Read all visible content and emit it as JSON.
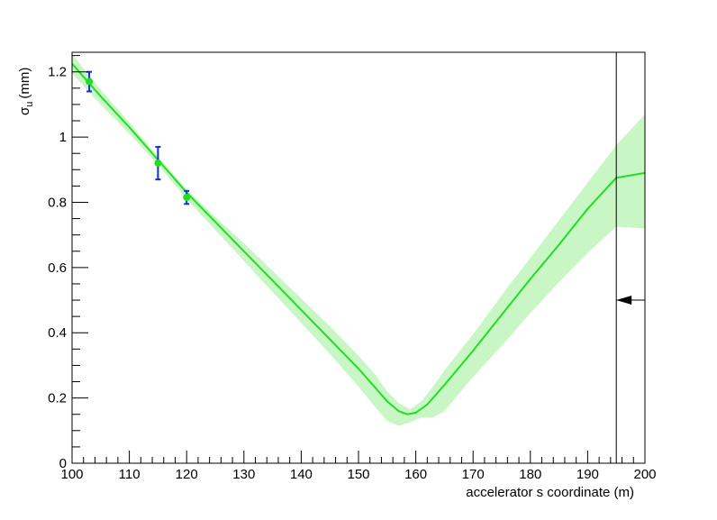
{
  "chart_data": {
    "type": "line",
    "title": "",
    "xlabel": "accelerator s coordinate (m)",
    "ylabel_main": "σ",
    "ylabel_sub": "u",
    "ylabel_unit": "(mm)",
    "xlim": [
      100,
      200
    ],
    "ylim": [
      0,
      1.26
    ],
    "grid": false,
    "x_ticks": [
      100,
      110,
      120,
      130,
      140,
      150,
      160,
      170,
      180,
      190,
      200
    ],
    "y_ticks": [
      0,
      0.2,
      0.4,
      0.6,
      0.8,
      1,
      1.2
    ],
    "y_tick_labels": [
      "0",
      "0.2",
      "0.4",
      "0.6",
      "0.8",
      "1",
      "1.2"
    ],
    "measurements": [
      {
        "x": 103,
        "y": 1.17,
        "err": 0.03
      },
      {
        "x": 115,
        "y": 0.92,
        "err": 0.05
      },
      {
        "x": 120,
        "y": 0.815,
        "err": 0.02
      }
    ],
    "fit_curve": {
      "x": [
        100,
        105,
        110,
        115,
        120,
        125,
        130,
        135,
        140,
        145,
        150,
        153,
        155,
        157,
        158.5,
        160,
        162,
        165,
        170,
        175,
        180,
        185,
        190,
        195,
        200
      ],
      "y": [
        1.225,
        1.125,
        1.03,
        0.93,
        0.83,
        0.74,
        0.65,
        0.56,
        0.47,
        0.38,
        0.29,
        0.23,
        0.19,
        0.16,
        0.15,
        0.155,
        0.18,
        0.24,
        0.345,
        0.455,
        0.565,
        0.67,
        0.78,
        0.875,
        0.89
      ]
    },
    "confidence_band": {
      "x": [
        100,
        105,
        110,
        115,
        120,
        125,
        130,
        135,
        140,
        145,
        150,
        153,
        155,
        157,
        159,
        161,
        163,
        165,
        170,
        175,
        180,
        185,
        190,
        195,
        200
      ],
      "upper": [
        1.255,
        1.145,
        1.045,
        0.94,
        0.84,
        0.755,
        0.675,
        0.59,
        0.505,
        0.42,
        0.33,
        0.27,
        0.22,
        0.185,
        0.165,
        0.19,
        0.235,
        0.285,
        0.395,
        0.515,
        0.63,
        0.745,
        0.86,
        0.975,
        1.07
      ],
      "lower": [
        1.195,
        1.1,
        1.01,
        0.915,
        0.81,
        0.715,
        0.62,
        0.525,
        0.43,
        0.335,
        0.235,
        0.17,
        0.13,
        0.115,
        0.125,
        0.14,
        0.14,
        0.16,
        0.265,
        0.36,
        0.46,
        0.555,
        0.645,
        0.725,
        0.72
      ]
    },
    "marker_line_x": 195,
    "arrow_y": 0.5,
    "colors": {
      "fit_line": "#22dd22",
      "band": "#c8f7c5",
      "points": "#22dd22",
      "error_bars": "#1030d8",
      "axis": "#000000"
    }
  }
}
